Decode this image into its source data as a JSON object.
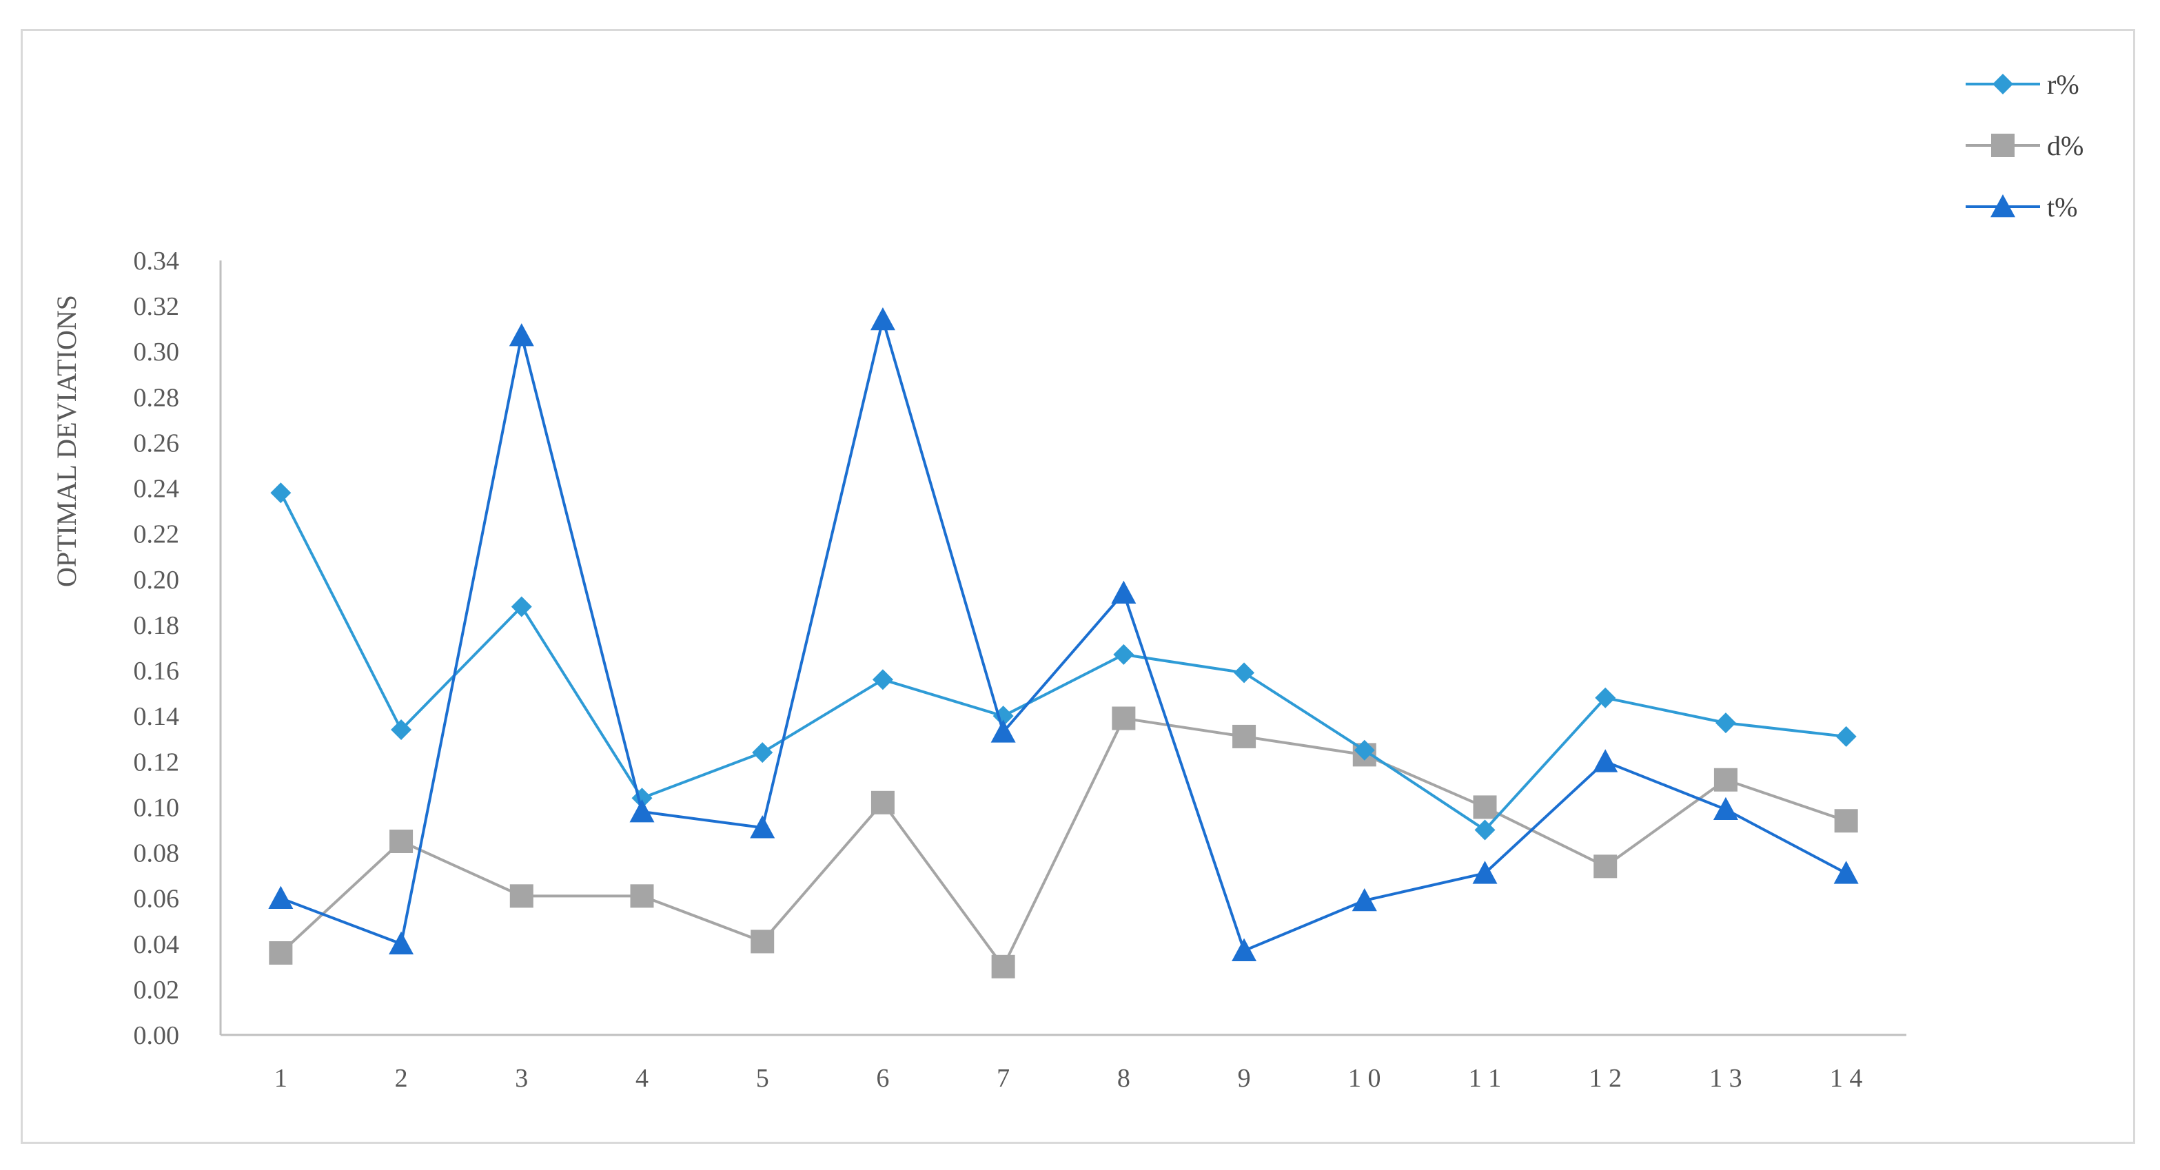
{
  "chart_data": {
    "type": "line",
    "title": "",
    "xlabel": "",
    "ylabel": "OPTIMAL DEVIATIONS",
    "categories": [
      "1",
      "2",
      "3",
      "4",
      "5",
      "6",
      "7",
      "8",
      "9",
      "10",
      "11",
      "12",
      "13",
      "14"
    ],
    "category_labels": [
      "1",
      "2",
      "3",
      "4",
      "5",
      "6",
      "7",
      "8",
      "9",
      "1 0",
      "1 1",
      "1 2",
      "1 3",
      "1 4"
    ],
    "ylim": [
      0,
      0.34
    ],
    "yticks": [
      "0.00",
      "0.02",
      "0.04",
      "0.06",
      "0.08",
      "0.10",
      "0.12",
      "0.14",
      "0.16",
      "0.18",
      "0.20",
      "0.22",
      "0.24",
      "0.26",
      "0.28",
      "0.30",
      "0.32",
      "0.34"
    ],
    "grid": false,
    "legend_position": "top-right",
    "series": [
      {
        "name": "r%",
        "marker": "diamond",
        "color": "#2e9bd6",
        "values": [
          0.238,
          0.134,
          0.188,
          0.104,
          0.124,
          0.156,
          0.14,
          0.167,
          0.159,
          0.125,
          0.09,
          0.148,
          0.137,
          0.131
        ]
      },
      {
        "name": "d%",
        "marker": "square",
        "color": "#a5a5a5",
        "values": [
          0.036,
          0.085,
          0.061,
          0.061,
          0.041,
          0.102,
          0.03,
          0.139,
          0.131,
          0.123,
          0.1,
          0.074,
          0.112,
          0.094
        ]
      },
      {
        "name": "t%",
        "marker": "triangle",
        "color": "#1b6fd1",
        "values": [
          0.06,
          0.04,
          0.307,
          0.098,
          0.091,
          0.314,
          0.133,
          0.194,
          0.037,
          0.059,
          0.071,
          0.12,
          0.099,
          0.071
        ]
      }
    ]
  }
}
